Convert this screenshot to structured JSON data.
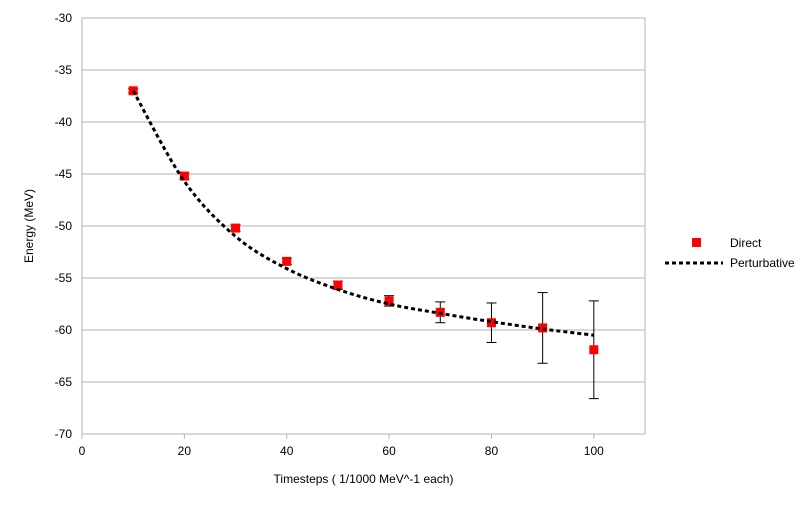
{
  "chart_data": {
    "type": "scatter",
    "title": "",
    "xlabel": "Timesteps ( 1/1000 MeV^-1 each)",
    "ylabel": "Energy (MeV)",
    "xlim": [
      0,
      110
    ],
    "ylim": [
      -70,
      -30
    ],
    "xticks": [
      0,
      20,
      40,
      60,
      80,
      100
    ],
    "yticks": [
      -30,
      -35,
      -40,
      -45,
      -50,
      -55,
      -60,
      -65,
      -70
    ],
    "grid": "horizontal",
    "legend_position": "right",
    "series": [
      {
        "name": "Direct",
        "kind": "markers-with-error-bars",
        "color": "#ff0000",
        "marker": "square",
        "x": [
          10,
          20,
          30,
          40,
          50,
          60,
          70,
          80,
          90,
          100
        ],
        "y": [
          -37.0,
          -45.2,
          -50.2,
          -53.4,
          -55.7,
          -57.2,
          -58.3,
          -59.3,
          -59.8,
          -61.9
        ],
        "error": [
          0.2,
          0.3,
          0.3,
          0.3,
          0.4,
          0.5,
          1.0,
          1.9,
          3.4,
          4.7
        ]
      },
      {
        "name": "Perturbative",
        "kind": "dashed-line",
        "color": "#000000",
        "x": [
          10,
          20,
          30,
          40,
          50,
          60,
          70,
          80,
          90,
          100
        ],
        "y": [
          -37.0,
          -45.7,
          -51.0,
          -54.1,
          -56.1,
          -57.5,
          -58.4,
          -59.2,
          -59.9,
          -60.5
        ]
      }
    ]
  }
}
